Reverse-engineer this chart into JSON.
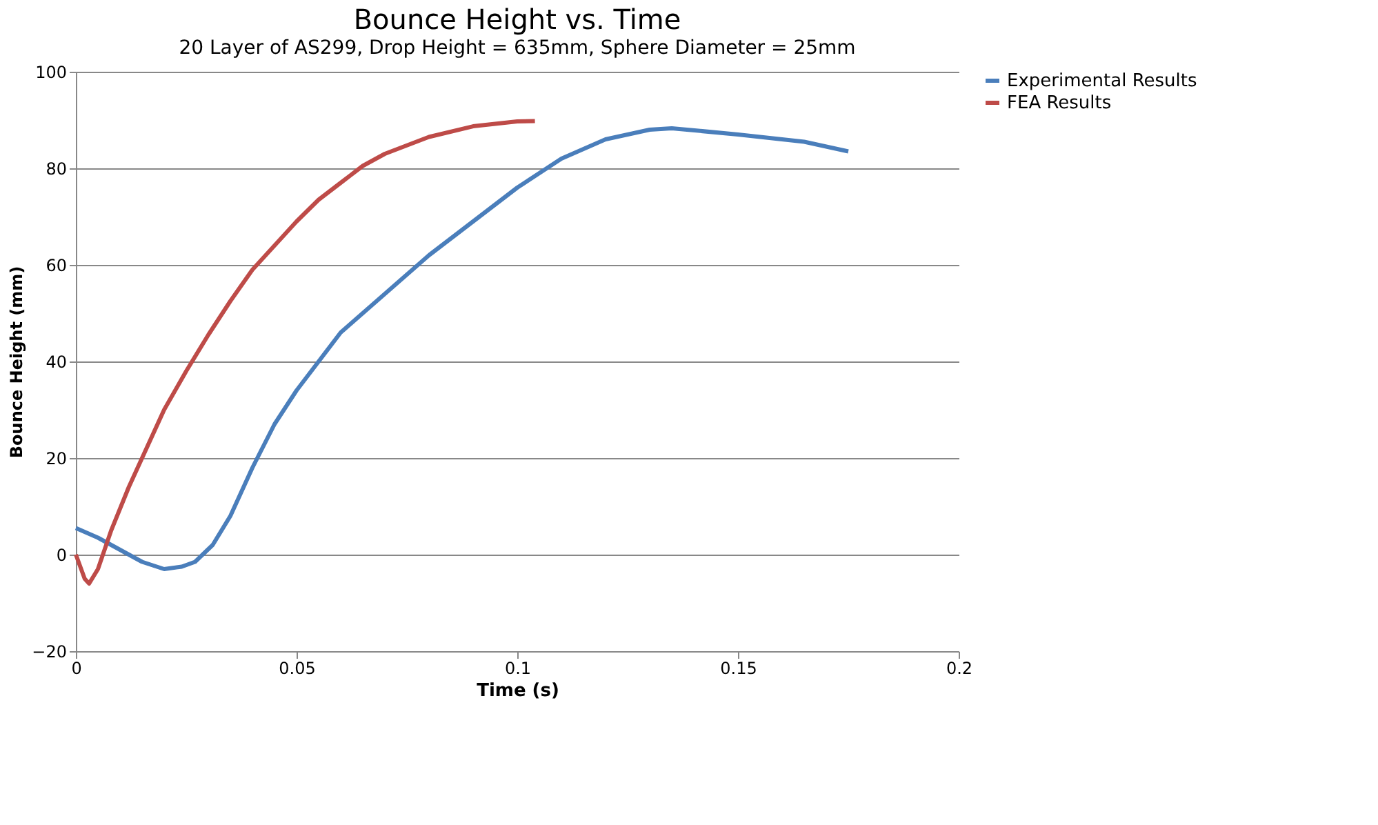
{
  "chart_data": {
    "type": "line",
    "title": "Bounce Height vs. Time",
    "subtitle": "20 Layer of AS299, Drop Height = 635mm, Sphere Diameter = 25mm",
    "xlabel": "Time (s)",
    "ylabel": "Bounce Height (mm)",
    "xlim": [
      0,
      0.2
    ],
    "xticks": [
      0,
      0.05,
      0.1,
      0.15,
      0.2
    ],
    "ylim": [
      -20,
      100
    ],
    "yticks": [
      -20,
      0,
      20,
      40,
      60,
      80,
      100
    ],
    "grid": "y",
    "legend": "right",
    "marker": "none",
    "line_style": "solid",
    "series": [
      {
        "name": "Experimental Results",
        "color": "#4a7ebb",
        "x": [
          0,
          0.005,
          0.01,
          0.015,
          0.02,
          0.024,
          0.027,
          0.031,
          0.035,
          0.04,
          0.045,
          0.05,
          0.055,
          0.06,
          0.07,
          0.08,
          0.09,
          0.1,
          0.11,
          0.12,
          0.13,
          0.135,
          0.15,
          0.165,
          0.175
        ],
        "values": [
          5.5,
          3.5,
          1,
          -1.5,
          -3,
          -2.5,
          -1.5,
          2,
          8,
          18,
          27,
          34,
          40,
          46,
          54,
          62,
          69,
          76,
          82,
          86,
          88,
          88.3,
          87,
          85.5,
          83.5
        ]
      },
      {
        "name": "FEA Results",
        "color": "#be4b48",
        "x": [
          0,
          0.002,
          0.003,
          0.005,
          0.008,
          0.012,
          0.016,
          0.02,
          0.025,
          0.03,
          0.035,
          0.04,
          0.045,
          0.05,
          0.055,
          0.06,
          0.065,
          0.07,
          0.08,
          0.09,
          0.1,
          0.104
        ],
        "values": [
          0,
          -5,
          -6,
          -3,
          5,
          14,
          22,
          30,
          38,
          45.5,
          52.5,
          59,
          64,
          69,
          73.5,
          77,
          80.5,
          83,
          86.5,
          88.7,
          89.7,
          89.8
        ]
      }
    ]
  }
}
